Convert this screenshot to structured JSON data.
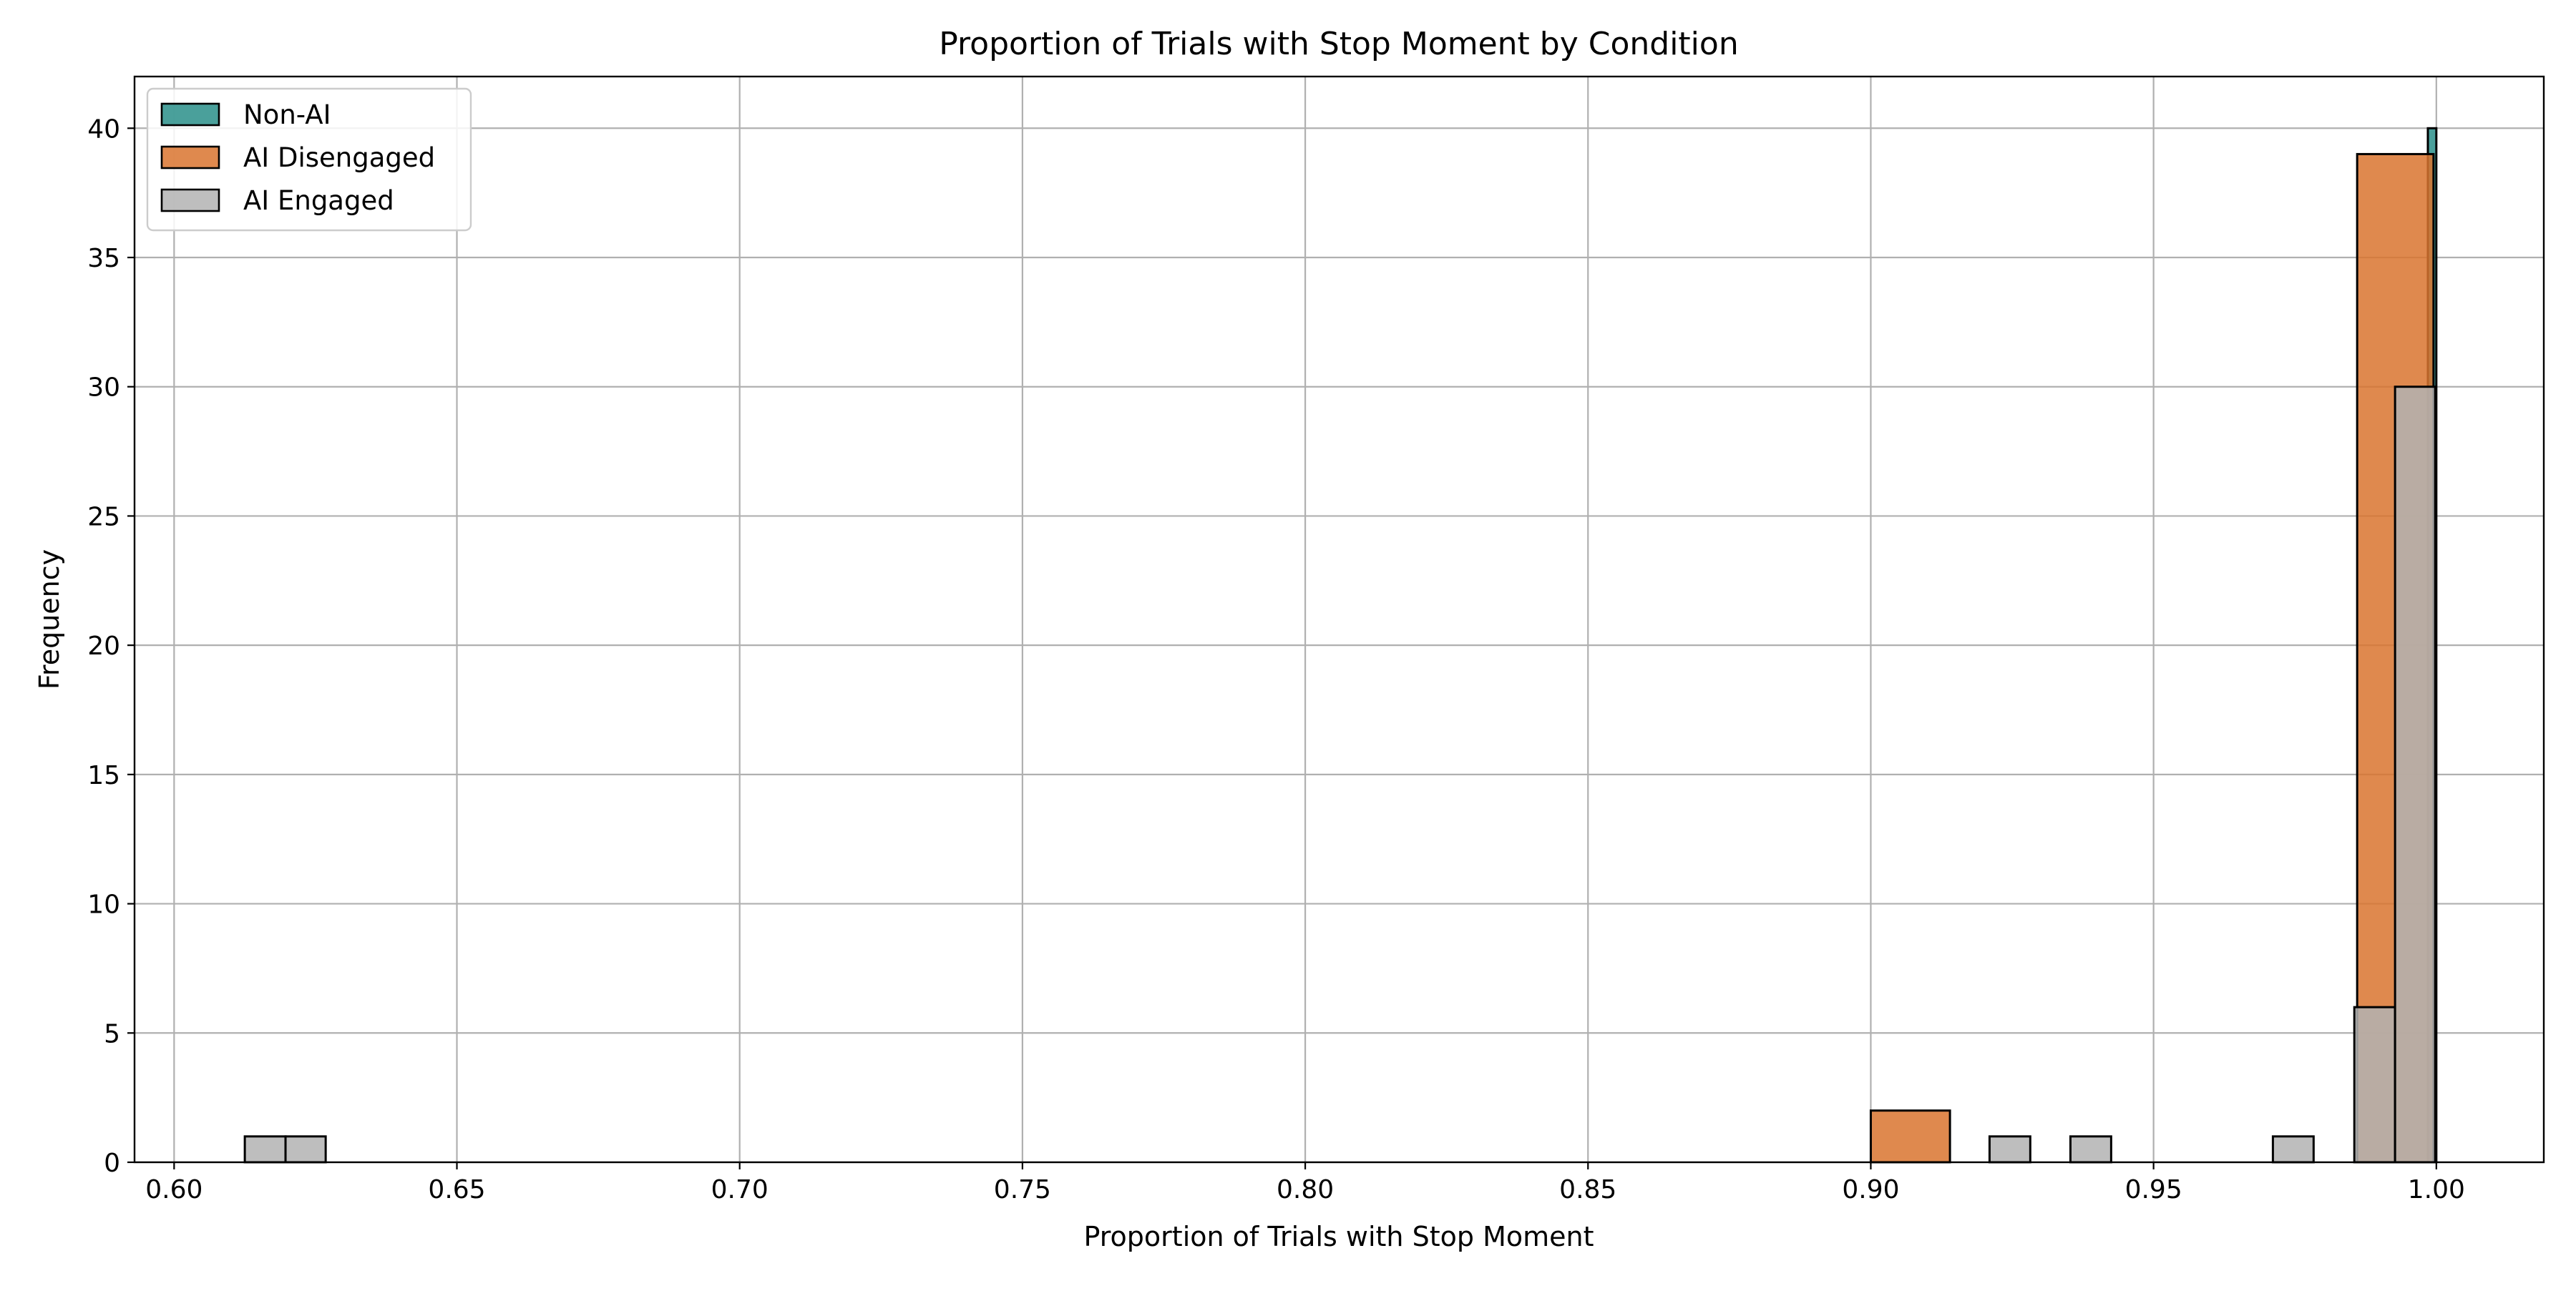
{
  "chart_data": {
    "type": "bar",
    "chart_kind": "histogram",
    "title": "Proportion of Trials with Stop Moment by Condition",
    "xlabel": "Proportion of Trials with Stop Moment",
    "ylabel": "Frequency",
    "xlim": [
      0.593,
      1.019
    ],
    "ylim": [
      0,
      42
    ],
    "xticks": [
      0.6,
      0.65,
      0.7,
      0.75,
      0.8,
      0.85,
      0.9,
      0.95,
      1.0
    ],
    "xtick_labels": [
      "0.60",
      "0.65",
      "0.70",
      "0.75",
      "0.80",
      "0.85",
      "0.90",
      "0.95",
      "1.00"
    ],
    "yticks": [
      0,
      5,
      10,
      15,
      20,
      25,
      30,
      35,
      40
    ],
    "ytick_labels": [
      "0",
      "5",
      "10",
      "15",
      "20",
      "25",
      "30",
      "35",
      "40"
    ],
    "grid": true,
    "legend_position": "top-left",
    "series": [
      {
        "name": "Non-AI",
        "color": "#2a8f8a",
        "bins": [
          {
            "x0": 0.9985,
            "x1": 1.0,
            "count": 40
          }
        ]
      },
      {
        "name": "AI Disengaged",
        "color": "#d9742f",
        "bins": [
          {
            "x0": 0.9,
            "x1": 0.914,
            "count": 2
          },
          {
            "x0": 0.914,
            "x1": 0.986,
            "count": 0
          },
          {
            "x0": 0.986,
            "x1": 0.9995,
            "count": 39
          }
        ]
      },
      {
        "name": "AI Engaged",
        "color": "#b3b3b3",
        "bins": [
          {
            "x0": 0.6125,
            "x1": 0.6197,
            "count": 1
          },
          {
            "x0": 0.6197,
            "x1": 0.6268,
            "count": 1
          },
          {
            "x0": 0.921,
            "x1": 0.9282,
            "count": 1
          },
          {
            "x0": 0.9353,
            "x1": 0.9425,
            "count": 1
          },
          {
            "x0": 0.9711,
            "x1": 0.9783,
            "count": 1
          },
          {
            "x0": 0.9855,
            "x1": 0.9927,
            "count": 6
          },
          {
            "x0": 0.9927,
            "x1": 0.9998,
            "count": 30
          }
        ]
      }
    ]
  }
}
